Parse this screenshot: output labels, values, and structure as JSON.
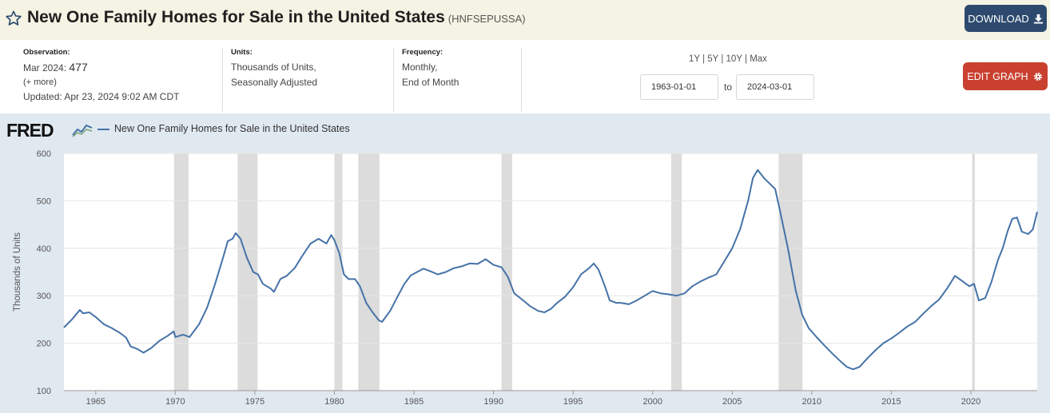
{
  "header": {
    "title": "New One Family Homes for Sale in the United States",
    "series_id": "(HNFSEPUSSA)",
    "download_label": "DOWNLOAD"
  },
  "meta": {
    "observation_label": "Observation:",
    "observation_period": "Mar 2024:",
    "observation_value": "477",
    "more_link": "(+ more)",
    "updated": "Updated: Apr 23, 2024 9:02 AM CDT",
    "units_label": "Units:",
    "units_line1": "Thousands of Units,",
    "units_line2": "Seasonally Adjusted",
    "frequency_label": "Frequency:",
    "frequency_line1": "Monthly,",
    "frequency_line2": "End of Month"
  },
  "range": {
    "opt_1y": "1Y",
    "opt_5y": "5Y",
    "opt_10y": "10Y",
    "opt_max": "Max",
    "sep": "|",
    "start": "1963-01-01",
    "end": "2024-03-01",
    "to_label": "to"
  },
  "edit_label": "EDIT GRAPH",
  "brand": {
    "logo": "FRED"
  },
  "colors": {
    "line": "#4572a7",
    "recession": "#dcdcdc",
    "edit": "#c9402f",
    "download": "#2d4a6e"
  },
  "chart_data": {
    "type": "line",
    "title": "",
    "legend": "New One Family Homes for Sale in the United States",
    "ylabel": "Thousands of Units",
    "xlabel": "",
    "xlim": [
      1963.0,
      2024.17
    ],
    "ylim": [
      100,
      600
    ],
    "yticks": [
      100,
      200,
      300,
      400,
      500,
      600
    ],
    "xticks": [
      1965,
      1970,
      1975,
      1980,
      1985,
      1990,
      1995,
      2000,
      2005,
      2010,
      2015,
      2020
    ],
    "grid": true,
    "recessions": [
      [
        1969.92,
        1970.83
      ],
      [
        1973.92,
        1975.17
      ],
      [
        1980.0,
        1980.5
      ],
      [
        1981.5,
        1982.83
      ],
      [
        1990.5,
        1991.17
      ],
      [
        2001.17,
        2001.83
      ],
      [
        2007.92,
        2009.42
      ],
      [
        2020.08,
        2020.25
      ]
    ],
    "series": [
      {
        "name": "New One Family Homes for Sale in the United States",
        "points": [
          [
            1963.0,
            233
          ],
          [
            1963.5,
            250
          ],
          [
            1963.8,
            262
          ],
          [
            1964.0,
            270
          ],
          [
            1964.2,
            263
          ],
          [
            1964.6,
            265
          ],
          [
            1965.0,
            255
          ],
          [
            1965.5,
            240
          ],
          [
            1966.0,
            232
          ],
          [
            1966.5,
            222
          ],
          [
            1966.9,
            212
          ],
          [
            1967.2,
            193
          ],
          [
            1967.6,
            188
          ],
          [
            1968.0,
            180
          ],
          [
            1968.5,
            190
          ],
          [
            1969.0,
            205
          ],
          [
            1969.5,
            215
          ],
          [
            1969.9,
            225
          ],
          [
            1970.0,
            213
          ],
          [
            1970.5,
            218
          ],
          [
            1970.9,
            213
          ],
          [
            1971.5,
            240
          ],
          [
            1972.0,
            275
          ],
          [
            1972.5,
            325
          ],
          [
            1973.0,
            380
          ],
          [
            1973.3,
            415
          ],
          [
            1973.6,
            420
          ],
          [
            1973.8,
            432
          ],
          [
            1974.1,
            420
          ],
          [
            1974.5,
            380
          ],
          [
            1974.9,
            350
          ],
          [
            1975.2,
            345
          ],
          [
            1975.5,
            325
          ],
          [
            1976.0,
            315
          ],
          [
            1976.2,
            308
          ],
          [
            1976.6,
            335
          ],
          [
            1977.0,
            342
          ],
          [
            1977.5,
            358
          ],
          [
            1978.0,
            385
          ],
          [
            1978.5,
            410
          ],
          [
            1979.0,
            420
          ],
          [
            1979.5,
            410
          ],
          [
            1979.8,
            428
          ],
          [
            1980.0,
            417
          ],
          [
            1980.3,
            390
          ],
          [
            1980.6,
            345
          ],
          [
            1980.9,
            335
          ],
          [
            1981.3,
            335
          ],
          [
            1981.6,
            320
          ],
          [
            1982.0,
            285
          ],
          [
            1982.4,
            265
          ],
          [
            1982.8,
            248
          ],
          [
            1983.0,
            245
          ],
          [
            1983.5,
            268
          ],
          [
            1984.0,
            300
          ],
          [
            1984.4,
            325
          ],
          [
            1984.8,
            343
          ],
          [
            1985.2,
            350
          ],
          [
            1985.6,
            357
          ],
          [
            1986.0,
            352
          ],
          [
            1986.5,
            345
          ],
          [
            1987.0,
            350
          ],
          [
            1987.5,
            358
          ],
          [
            1988.0,
            362
          ],
          [
            1988.5,
            368
          ],
          [
            1989.0,
            367
          ],
          [
            1989.5,
            377
          ],
          [
            1990.0,
            365
          ],
          [
            1990.5,
            360
          ],
          [
            1990.9,
            340
          ],
          [
            1991.3,
            305
          ],
          [
            1991.8,
            292
          ],
          [
            1992.3,
            278
          ],
          [
            1992.8,
            268
          ],
          [
            1993.2,
            265
          ],
          [
            1993.6,
            272
          ],
          [
            1994.0,
            285
          ],
          [
            1994.5,
            298
          ],
          [
            1995.0,
            318
          ],
          [
            1995.5,
            345
          ],
          [
            1996.0,
            358
          ],
          [
            1996.3,
            368
          ],
          [
            1996.6,
            355
          ],
          [
            1997.0,
            320
          ],
          [
            1997.3,
            290
          ],
          [
            1997.7,
            285
          ],
          [
            1998.0,
            285
          ],
          [
            1998.5,
            282
          ],
          [
            1999.0,
            290
          ],
          [
            1999.5,
            300
          ],
          [
            2000.0,
            310
          ],
          [
            2000.5,
            305
          ],
          [
            2001.0,
            303
          ],
          [
            2001.5,
            300
          ],
          [
            2002.0,
            305
          ],
          [
            2002.5,
            320
          ],
          [
            2003.0,
            330
          ],
          [
            2003.5,
            338
          ],
          [
            2004.0,
            345
          ],
          [
            2004.5,
            372
          ],
          [
            2005.0,
            400
          ],
          [
            2005.5,
            440
          ],
          [
            2006.0,
            500
          ],
          [
            2006.3,
            548
          ],
          [
            2006.6,
            565
          ],
          [
            2007.0,
            548
          ],
          [
            2007.3,
            538
          ],
          [
            2007.7,
            525
          ],
          [
            2008.0,
            480
          ],
          [
            2008.5,
            400
          ],
          [
            2009.0,
            310
          ],
          [
            2009.4,
            260
          ],
          [
            2009.8,
            232
          ],
          [
            2010.3,
            213
          ],
          [
            2010.8,
            195
          ],
          [
            2011.3,
            178
          ],
          [
            2011.8,
            162
          ],
          [
            2012.2,
            150
          ],
          [
            2012.6,
            145
          ],
          [
            2013.0,
            150
          ],
          [
            2013.5,
            168
          ],
          [
            2014.0,
            185
          ],
          [
            2014.5,
            200
          ],
          [
            2015.0,
            210
          ],
          [
            2015.5,
            222
          ],
          [
            2016.0,
            235
          ],
          [
            2016.5,
            245
          ],
          [
            2017.0,
            262
          ],
          [
            2017.5,
            278
          ],
          [
            2018.0,
            292
          ],
          [
            2018.5,
            315
          ],
          [
            2019.0,
            342
          ],
          [
            2019.5,
            330
          ],
          [
            2019.9,
            320
          ],
          [
            2020.2,
            325
          ],
          [
            2020.5,
            290
          ],
          [
            2020.9,
            295
          ],
          [
            2021.3,
            330
          ],
          [
            2021.7,
            375
          ],
          [
            2022.0,
            400
          ],
          [
            2022.3,
            435
          ],
          [
            2022.6,
            462
          ],
          [
            2022.9,
            465
          ],
          [
            2023.2,
            435
          ],
          [
            2023.6,
            430
          ],
          [
            2023.9,
            440
          ],
          [
            2024.17,
            477
          ]
        ]
      }
    ]
  }
}
